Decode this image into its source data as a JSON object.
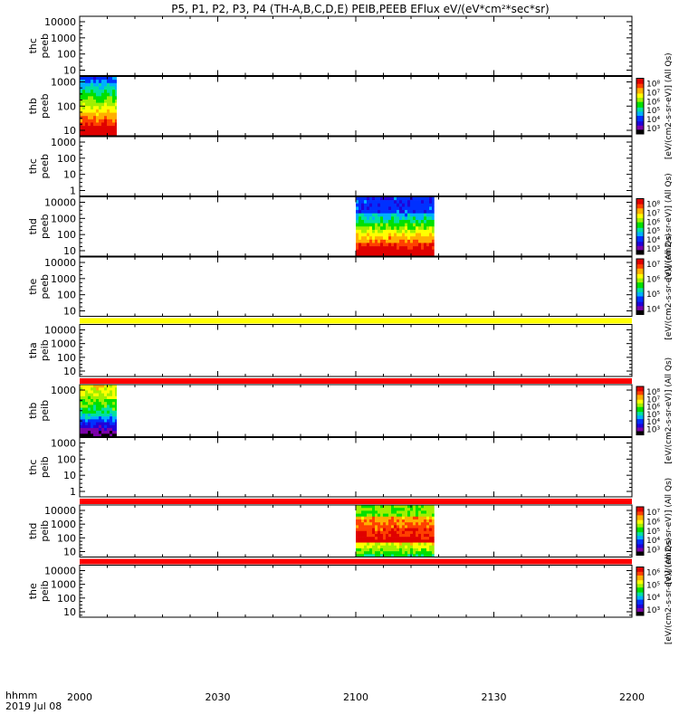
{
  "chart_data": {
    "type": "heatmap",
    "title": "P5, P1, P2, P3, P4 (TH-A,B,C,D,E) PEIB,PEEB EFlux eV/(eV*cm²*sec*sr)",
    "x_tick_labels": [
      "2000",
      "2030",
      "2100",
      "2130",
      "2200"
    ],
    "x_range_minutes": [
      0,
      120
    ],
    "x_corner_label": "hhmm",
    "date_label": "2019 Jul 08",
    "y_scale": "log",
    "colorbar_units_label": "[eV/(cm2-s-sr-eV)] (All Qs)",
    "panels": [
      {
        "name": "thc peeb",
        "line1": "thc",
        "line2": "peeb",
        "yticks": [
          "10000",
          "1000",
          "100",
          "10"
        ],
        "colorbar": false,
        "data_blocks": []
      },
      {
        "name": "thb peeb",
        "line1": "thb",
        "line2": "peeb",
        "yticks": [
          "1000",
          "100",
          "10"
        ],
        "colorbar": true,
        "cbar_ticks": [
          "10⁸",
          "10⁷",
          "10⁶",
          "10⁵",
          "10⁴",
          "10³"
        ],
        "data_blocks": [
          {
            "t_start": 0,
            "t_end": 8,
            "profile": "electron_low"
          }
        ]
      },
      {
        "name": "thc peeb",
        "line1": "thc",
        "line2": "peeb",
        "yticks": [
          "1000",
          "100",
          "10",
          "1"
        ],
        "colorbar": false,
        "data_blocks": []
      },
      {
        "name": "thd peeb",
        "line1": "thd",
        "line2": "peeb",
        "yticks": [
          "10000",
          "1000",
          "100",
          "10"
        ],
        "colorbar": true,
        "cbar_ticks": [
          "10⁸",
          "10⁷",
          "10⁶",
          "10⁵",
          "10⁴",
          "10³"
        ],
        "data_blocks": [
          {
            "t_start": 60,
            "t_end": 77,
            "profile": "electron_high"
          }
        ]
      },
      {
        "name": "the peeb",
        "line1": "the",
        "line2": "peeb",
        "yticks": [
          "10000",
          "1000",
          "100",
          "10"
        ],
        "colorbar": true,
        "cbar_ticks": [
          "10⁷",
          "10⁶",
          "10⁵",
          "10⁴"
        ],
        "data_blocks": []
      },
      {
        "name": "tha peib",
        "line1": "tha",
        "line2": "peib",
        "yticks": [
          "10000",
          "1000",
          "100",
          "10"
        ],
        "colorbar": false,
        "data_blocks": [],
        "top_band": "yellow"
      },
      {
        "name": "thb peib",
        "line1": "thb",
        "line2": "peib",
        "yticks": [
          "1000"
        ],
        "colorbar": true,
        "cbar_ticks": [
          "10⁸",
          "10⁷",
          "10⁶",
          "10⁵",
          "10⁴",
          "10³"
        ],
        "data_blocks": [
          {
            "t_start": 0,
            "t_end": 8,
            "profile": "ion_b"
          }
        ],
        "top_band": "red"
      },
      {
        "name": "thc peib",
        "line1": "thc",
        "line2": "peib",
        "yticks": [
          "1000",
          "100",
          "10",
          "1"
        ],
        "colorbar": false,
        "data_blocks": []
      },
      {
        "name": "thd peib",
        "line1": "thd",
        "line2": "peib",
        "yticks": [
          "10000",
          "1000",
          "100",
          "10"
        ],
        "colorbar": true,
        "cbar_ticks": [
          "10⁷",
          "10⁶",
          "10⁵",
          "10⁴",
          "10³"
        ],
        "data_blocks": [
          {
            "t_start": 60,
            "t_end": 77,
            "profile": "ion_d"
          }
        ],
        "top_band": "red"
      },
      {
        "name": "the peib",
        "line1": "the",
        "line2": "peib",
        "yticks": [
          "10000",
          "1000",
          "100",
          "10"
        ],
        "colorbar": true,
        "cbar_ticks": [
          "10⁶",
          "10⁵",
          "10⁴",
          "10³"
        ],
        "data_blocks": [],
        "top_band": "red"
      }
    ],
    "colors": {
      "yellow_band": "#ffff00",
      "red_band": "#ff0000",
      "colormap": [
        "#000000",
        "#7a00a8",
        "#2000d8",
        "#0030ff",
        "#00b0ff",
        "#00e0a0",
        "#00e000",
        "#a0f000",
        "#ffff00",
        "#ffb000",
        "#ff4000",
        "#e00000"
      ]
    }
  }
}
